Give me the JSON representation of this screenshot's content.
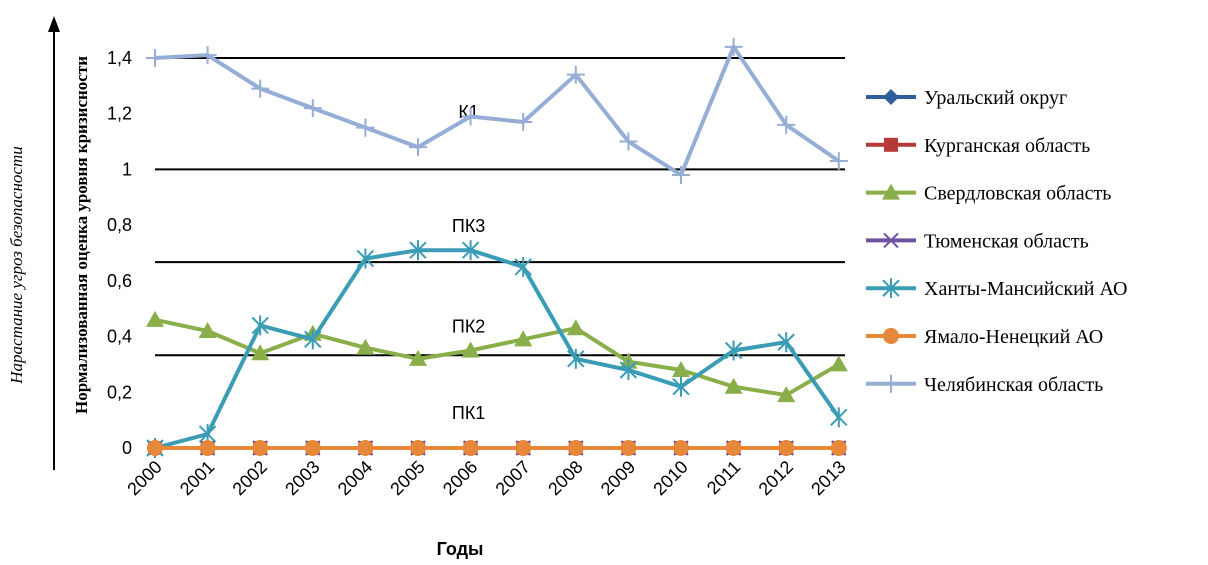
{
  "side_label": "Нарастание угроз безопасности",
  "chart_data": {
    "type": "line",
    "title": "",
    "xlabel": "Годы",
    "ylabel": "Нормализованная оценка уровня кризисности",
    "x": [
      "2000",
      "2001",
      "2002",
      "2003",
      "2004",
      "2005",
      "2006",
      "2007",
      "2008",
      "2009",
      "2010",
      "2011",
      "2012",
      "2013"
    ],
    "ylim": [
      0,
      1.5
    ],
    "yticks": [
      "0",
      "0,2",
      "0,4",
      "0,6",
      "0,8",
      "1",
      "1,2",
      "1,4"
    ],
    "ytick_values": [
      0,
      0.2,
      0.4,
      0.6,
      0.8,
      1.0,
      1.2,
      1.4
    ],
    "grid": false,
    "legend_position": "right",
    "threshold_lines": [
      0.333,
      0.667,
      1.0,
      1.4
    ],
    "zone_labels": [
      {
        "text": "К1",
        "x": "2006",
        "y": 1.21
      },
      {
        "text": "ПК3",
        "x": "2006",
        "y": 0.8
      },
      {
        "text": "ПК2",
        "x": "2006",
        "y": 0.44
      },
      {
        "text": "ПК1",
        "x": "2006",
        "y": 0.13
      }
    ],
    "series": [
      {
        "name": "Уральский округ",
        "color": "#2e5f9a",
        "marker": "diamond",
        "values": [
          0,
          0,
          0,
          0,
          0,
          0,
          0,
          0,
          0,
          0,
          0,
          0,
          0,
          0
        ]
      },
      {
        "name": "Курганская область",
        "color": "#b63a35",
        "marker": "square",
        "values": [
          0,
          0,
          0,
          0,
          0,
          0,
          0,
          0,
          0,
          0,
          0,
          0,
          0,
          0
        ]
      },
      {
        "name": "Свердловская область",
        "color": "#8aae4a",
        "marker": "triangle",
        "values": [
          0.46,
          0.42,
          0.34,
          0.41,
          0.36,
          0.32,
          0.35,
          0.39,
          0.43,
          0.31,
          0.28,
          0.22,
          0.19,
          0.3
        ]
      },
      {
        "name": "Тюменская область",
        "color": "#6f52a0",
        "marker": "x",
        "values": [
          0,
          0,
          0,
          0,
          0,
          0,
          0,
          0,
          0,
          0,
          0,
          0,
          0,
          0
        ]
      },
      {
        "name": "Ханты-Мансийский АО",
        "color": "#3a9cb5",
        "marker": "asterisk",
        "values": [
          0,
          0.05,
          0.44,
          0.39,
          0.68,
          0.71,
          0.71,
          0.65,
          0.32,
          0.28,
          0.22,
          0.35,
          0.38,
          0.11
        ]
      },
      {
        "name": "Ямало-Ненецкий АО",
        "color": "#e6873a",
        "marker": "circle",
        "values": [
          0,
          0,
          0,
          0,
          0,
          0,
          0,
          0,
          0,
          0,
          0,
          0,
          0,
          0
        ]
      },
      {
        "name": "Челябинская область",
        "color": "#96add6",
        "marker": "plus",
        "values": [
          1.4,
          1.41,
          1.29,
          1.22,
          1.15,
          1.08,
          1.19,
          1.17,
          1.34,
          1.1,
          0.98,
          1.44,
          1.16,
          1.03
        ]
      }
    ]
  }
}
